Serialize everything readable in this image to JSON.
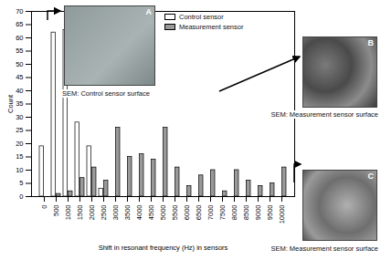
{
  "chart_data": {
    "type": "bar",
    "categories": [
      0,
      500,
      1000,
      1500,
      2000,
      2500,
      3000,
      3500,
      4000,
      4500,
      5000,
      5500,
      6000,
      6500,
      7000,
      7500,
      8000,
      8500,
      9000,
      9500,
      10000
    ],
    "series": [
      {
        "name": "Control sensor",
        "color": "#ffffff",
        "values": [
          19,
          62,
          63,
          28,
          19,
          3,
          0,
          0,
          0,
          0,
          0,
          0,
          0,
          0,
          0,
          0,
          0,
          0,
          0,
          0,
          0
        ]
      },
      {
        "name": "Measurement sensor",
        "color": "#9a9a9a",
        "values": [
          0,
          1,
          2,
          7,
          11,
          6,
          26,
          15,
          16,
          14,
          26,
          11,
          4,
          8,
          10,
          2,
          10,
          6,
          4,
          5,
          11
        ]
      }
    ],
    "x_label": "Shift in resonant frequency (Hz) in sensors",
    "y_label": "Count",
    "ylim": [
      0,
      70
    ],
    "yticks": [
      0,
      5,
      10,
      15,
      20,
      25,
      30,
      35,
      40,
      45,
      50,
      55,
      60,
      65,
      70
    ],
    "legend": "top",
    "annotations": [
      {
        "label": "A",
        "text": "SEM: Control sensor surface"
      },
      {
        "label": "B",
        "text": "SEM: Measurement sensor surface"
      },
      {
        "label": "C",
        "text": "SEM: Measurement sensor surface"
      }
    ]
  }
}
